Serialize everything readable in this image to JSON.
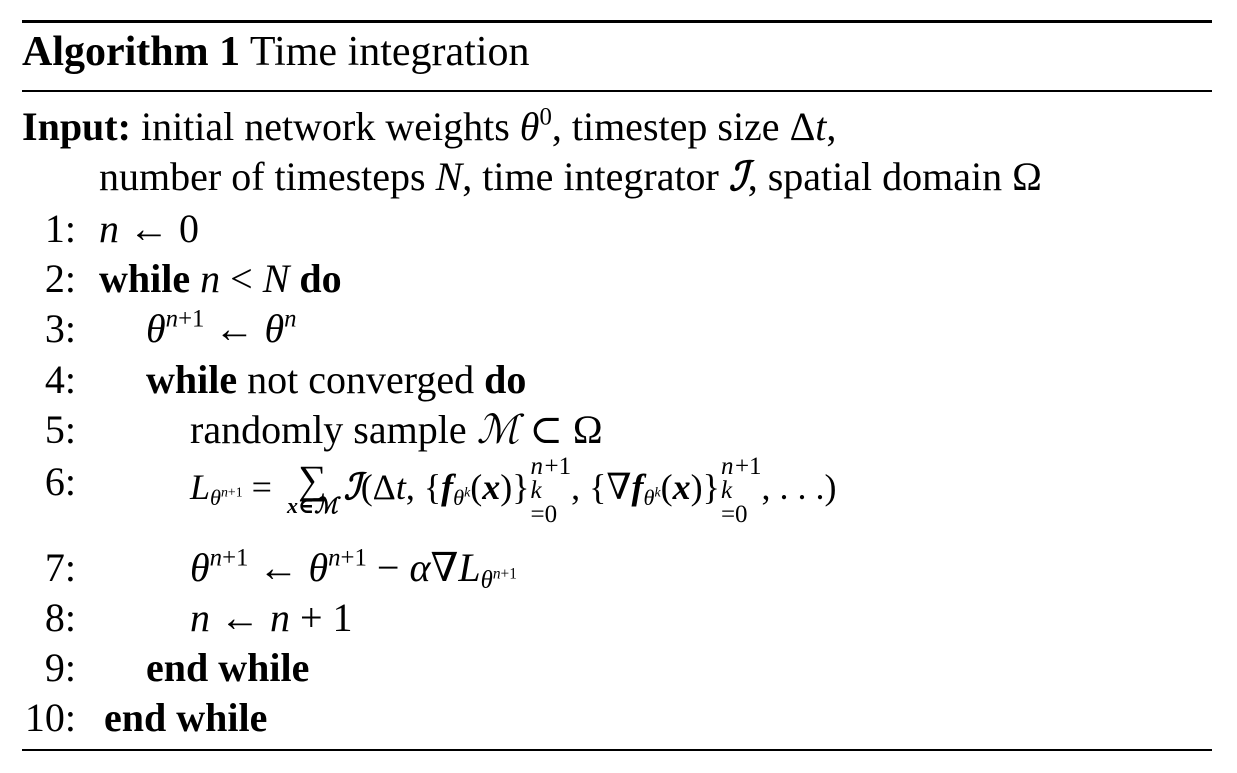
{
  "algorithm": {
    "label": "Algorithm 1",
    "title": "Time integration"
  },
  "input": {
    "label": "Input:",
    "line1_a": "initial network weights ",
    "line1_b": ", timestep size ",
    "line2_a": "number of timesteps ",
    "line2_b": ", time integrator ",
    "line2_c": ", spatial domain Ω"
  },
  "steps": [
    {
      "num": "1:"
    },
    {
      "num": "2:",
      "kw_while": "while",
      "kw_do": "do"
    },
    {
      "num": "3:"
    },
    {
      "num": "4:",
      "kw_while": "while",
      "text": " not converged ",
      "kw_do": "do"
    },
    {
      "num": "5:",
      "text": "randomly sample "
    },
    {
      "num": "6:"
    },
    {
      "num": "7:"
    },
    {
      "num": "8:"
    },
    {
      "num": "9:",
      "text": "end while"
    },
    {
      "num": "10:",
      "text": "end while"
    }
  ]
}
